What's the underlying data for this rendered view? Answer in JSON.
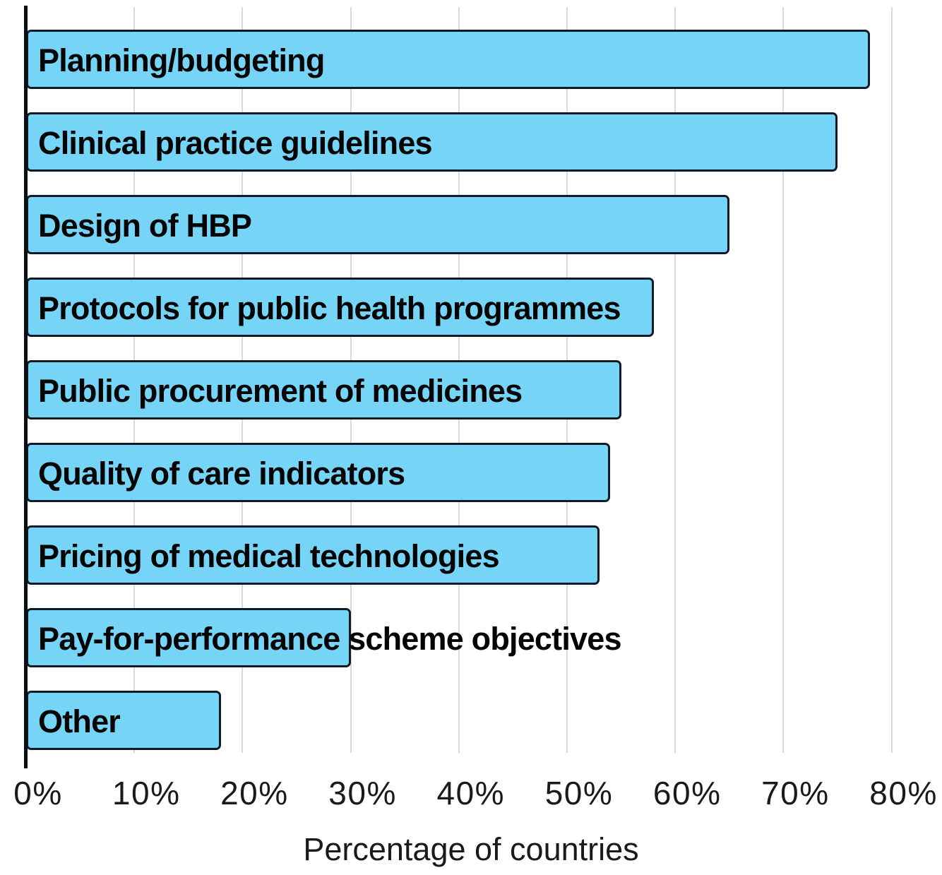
{
  "chart_data": {
    "type": "bar",
    "orientation": "horizontal",
    "categories": [
      "Planning/budgeting",
      "Clinical practice guidelines",
      "Design of HBP",
      "Protocols for public health programmes",
      "Public procurement of medicines",
      "Quality of care indicators",
      "Pricing of medical technologies",
      "Pay-for-performance scheme objectives",
      "Other"
    ],
    "values": [
      78,
      75,
      65,
      58,
      55,
      54,
      53,
      30,
      18
    ],
    "unit": "%",
    "title": "",
    "xlabel": "Percentage of countries",
    "ylabel": "",
    "xlim": [
      0,
      80
    ],
    "xtick_step": 10,
    "xtick_labels": [
      "0%",
      "10%",
      "20%",
      "30%",
      "40%",
      "50%",
      "60%",
      "70%",
      "80%"
    ],
    "grid": "vertical-gridlines-on",
    "legend": "none",
    "label_position": "inside-bar-left",
    "colors": {
      "bar_fill": "#76d5f7",
      "bar_border": "#0e1b26",
      "gridline": "#d9d9d9",
      "axis_line": "#0a0f14",
      "text": "#1a1a1a",
      "background": "#ffffff"
    }
  }
}
